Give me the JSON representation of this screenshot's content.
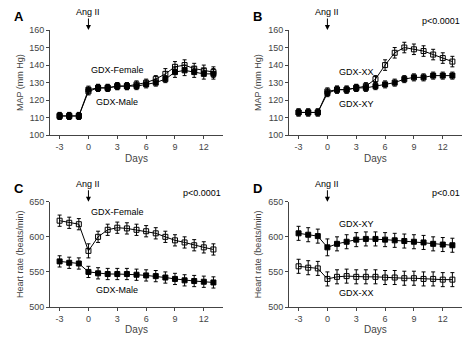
{
  "chart_data": [
    {
      "type": "line",
      "title": "A",
      "xlabel": "Days",
      "ylabel": "MAP (mm Hg)",
      "x": [
        -3,
        -2,
        -1,
        0,
        1,
        2,
        3,
        4,
        5,
        6,
        7,
        8,
        9,
        10,
        11,
        12,
        13
      ],
      "xlim": [
        -4,
        14
      ],
      "xticks": [
        -3,
        0,
        3,
        6,
        9,
        12
      ],
      "ylim": [
        100,
        160
      ],
      "yticks": [
        100,
        110,
        120,
        130,
        140,
        150,
        160
      ],
      "grid": false,
      "annotations": [
        {
          "text": "Ang II",
          "x": 0
        }
      ],
      "series": [
        {
          "name": "GDX-Male",
          "color": "#000000",
          "marker": "square",
          "values": [
            111,
            111,
            111,
            126,
            127,
            127,
            128,
            128,
            128,
            129,
            130,
            132,
            136,
            137,
            136,
            135,
            135
          ],
          "errors": [
            2,
            2,
            2,
            2,
            2,
            2,
            2,
            2,
            2,
            2,
            2,
            2,
            3,
            3,
            3,
            3,
            3
          ]
        },
        {
          "name": "GDX-Female",
          "color": "#000000",
          "marker": "square-open",
          "values": [
            111,
            111,
            111,
            125,
            127,
            127,
            128,
            128,
            129,
            130,
            132,
            135,
            139,
            140,
            138,
            137,
            136
          ],
          "errors": [
            2,
            2,
            2,
            2,
            2,
            2,
            2,
            2,
            2,
            2,
            2,
            3,
            3,
            3,
            3,
            3,
            3
          ]
        }
      ]
    },
    {
      "type": "line",
      "title": "B",
      "xlabel": "Days",
      "ylabel": "MAP (mm Hg)",
      "x": [
        -3,
        -2,
        -1,
        0,
        1,
        2,
        3,
        4,
        5,
        6,
        7,
        8,
        9,
        10,
        11,
        12,
        13
      ],
      "xlim": [
        -4,
        14
      ],
      "xticks": [
        -3,
        0,
        3,
        6,
        9,
        12
      ],
      "ylim": [
        100,
        160
      ],
      "yticks": [
        100,
        110,
        120,
        130,
        140,
        150,
        160
      ],
      "grid": false,
      "annotations": [
        {
          "text": "Ang II",
          "x": 0
        },
        {
          "text": "p<0.0001"
        }
      ],
      "series": [
        {
          "name": "GDX-XY",
          "color": "#000000",
          "marker": "square",
          "values": [
            113,
            113,
            113,
            124,
            126,
            126,
            127,
            127,
            128,
            129,
            130,
            132,
            133,
            133,
            134,
            134,
            134
          ],
          "errors": [
            2,
            2,
            2,
            2,
            2,
            2,
            2,
            2,
            2,
            2,
            2,
            2,
            2,
            2,
            2,
            2,
            2
          ]
        },
        {
          "name": "GDX-XX",
          "color": "#000000",
          "marker": "square-open",
          "values": [
            113,
            113,
            113,
            125,
            126,
            126,
            127,
            128,
            132,
            140,
            147,
            150,
            149,
            148,
            146,
            144,
            142
          ],
          "errors": [
            2,
            2,
            2,
            2,
            2,
            2,
            2,
            2,
            2,
            3,
            3,
            3,
            3,
            3,
            3,
            3,
            3
          ]
        }
      ]
    },
    {
      "type": "line",
      "title": "C",
      "xlabel": "Days",
      "ylabel": "Heart rate (beats/min)",
      "x": [
        -3,
        -2,
        -1,
        0,
        1,
        2,
        3,
        4,
        5,
        6,
        7,
        8,
        9,
        10,
        11,
        12,
        13
      ],
      "xlim": [
        -4,
        14
      ],
      "xticks": [
        -3,
        0,
        3,
        6,
        9,
        12
      ],
      "ylim": [
        500,
        650
      ],
      "yticks": [
        500,
        550,
        600,
        650
      ],
      "grid": false,
      "annotations": [
        {
          "text": "Ang II",
          "x": 0
        },
        {
          "text": "p<0.0001"
        }
      ],
      "series": [
        {
          "name": "GDX-Male",
          "color": "#000000",
          "marker": "square",
          "values": [
            565,
            563,
            562,
            550,
            548,
            547,
            547,
            547,
            546,
            545,
            544,
            542,
            540,
            538,
            537,
            536,
            535
          ],
          "errors": [
            8,
            8,
            8,
            8,
            8,
            8,
            8,
            8,
            8,
            8,
            8,
            8,
            8,
            8,
            8,
            8,
            8
          ]
        },
        {
          "name": "GDX-Female",
          "color": "#000000",
          "marker": "square-open",
          "values": [
            623,
            620,
            618,
            580,
            600,
            610,
            613,
            612,
            610,
            608,
            605,
            600,
            595,
            592,
            588,
            585,
            582
          ],
          "errors": [
            8,
            8,
            8,
            10,
            8,
            8,
            8,
            8,
            8,
            8,
            8,
            8,
            8,
            8,
            8,
            8,
            8
          ]
        }
      ]
    },
    {
      "type": "line",
      "title": "D",
      "xlabel": "Days",
      "ylabel": "Heart rate (beats/min)",
      "x": [
        -3,
        -2,
        -1,
        0,
        1,
        2,
        3,
        4,
        5,
        6,
        7,
        8,
        9,
        10,
        11,
        12,
        13
      ],
      "xlim": [
        -4,
        14
      ],
      "xticks": [
        -3,
        0,
        3,
        6,
        9,
        12
      ],
      "ylim": [
        500,
        650
      ],
      "yticks": [
        500,
        550,
        600,
        650
      ],
      "grid": false,
      "annotations": [
        {
          "text": "Ang II",
          "x": 0
        },
        {
          "text": "p<0.01"
        }
      ],
      "series": [
        {
          "name": "GDX-XY",
          "color": "#000000",
          "marker": "square",
          "values": [
            605,
            603,
            601,
            585,
            590,
            593,
            596,
            597,
            597,
            596,
            595,
            594,
            593,
            592,
            590,
            589,
            588
          ],
          "errors": [
            10,
            10,
            10,
            12,
            10,
            10,
            10,
            10,
            10,
            10,
            10,
            10,
            10,
            10,
            10,
            10,
            10
          ]
        },
        {
          "name": "GDX-XX",
          "color": "#000000",
          "marker": "square-open",
          "values": [
            558,
            556,
            555,
            540,
            543,
            544,
            543,
            543,
            543,
            542,
            542,
            541,
            541,
            540,
            540,
            539,
            539
          ],
          "errors": [
            10,
            10,
            10,
            10,
            10,
            10,
            10,
            10,
            10,
            10,
            10,
            10,
            10,
            10,
            10,
            10,
            10
          ]
        }
      ]
    }
  ]
}
